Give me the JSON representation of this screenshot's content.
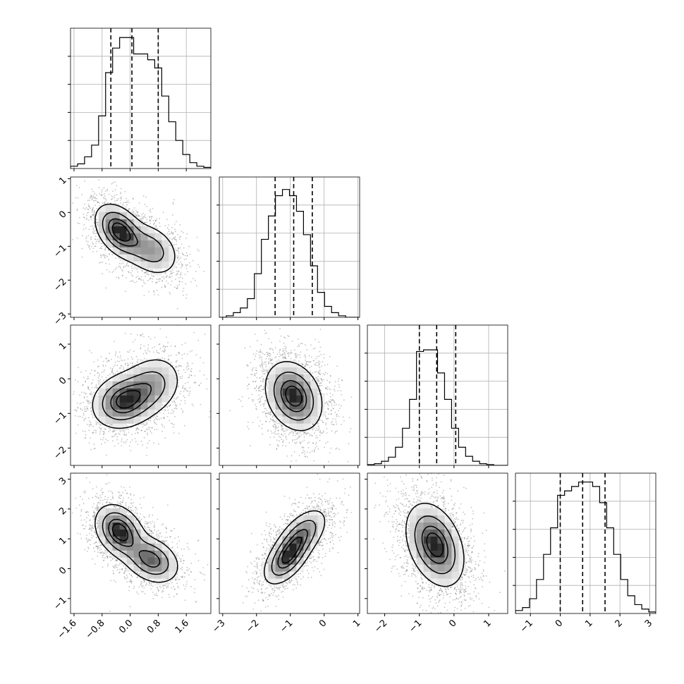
{
  "figure": {
    "type": "corner-plot"
  },
  "chart_data": {
    "type": "corner",
    "grid": true,
    "params": [
      {
        "range": [
          -1.7,
          2.3
        ],
        "ticks": [
          -1.6,
          -0.8,
          0.0,
          0.8,
          1.6
        ],
        "tick_labels": [
          "−1.6",
          "−0.8",
          "0.0",
          "0.8",
          "1.6"
        ],
        "quantiles": [
          -0.55,
          0.05,
          0.8
        ],
        "hist": [
          2,
          4,
          10,
          20,
          45,
          82,
          103,
          112,
          112,
          98,
          98,
          93,
          86,
          62,
          40,
          24,
          12,
          5,
          2,
          1
        ],
        "hist_max": 120
      },
      {
        "range": [
          -3.1,
          1.05
        ],
        "ticks": [
          -3,
          -2,
          -1,
          0,
          1
        ],
        "tick_labels": [
          "−3",
          "−2",
          "−1",
          "0",
          "1"
        ],
        "quantiles": [
          -1.45,
          -0.9,
          -0.35
        ],
        "hist": [
          0,
          1,
          3,
          6,
          12,
          28,
          50,
          65,
          78,
          82,
          78,
          68,
          53,
          33,
          16,
          7,
          3,
          1,
          0,
          0
        ],
        "hist_max": 90
      },
      {
        "range": [
          -2.5,
          1.55
        ],
        "ticks": [
          -2,
          -1,
          0,
          1
        ],
        "tick_labels": [
          "−2",
          "−1",
          "0",
          "1"
        ],
        "quantiles": [
          -1.0,
          -0.5,
          0.05
        ],
        "hist": [
          1,
          2,
          5,
          10,
          22,
          45,
          80,
          138,
          140,
          140,
          112,
          80,
          45,
          22,
          11,
          5,
          2,
          1,
          0,
          0
        ],
        "hist_max": 170
      },
      {
        "range": [
          -1.5,
          3.2
        ],
        "ticks": [
          -1,
          0,
          1,
          2,
          3
        ],
        "tick_labels": [
          "−1",
          "0",
          "1",
          "2",
          "3"
        ],
        "quantiles": [
          0.0,
          0.75,
          1.5
        ],
        "hist": [
          2,
          4,
          10,
          23,
          40,
          58,
          80,
          83,
          86,
          89,
          89,
          86,
          75,
          58,
          40,
          23,
          12,
          6,
          3,
          1
        ],
        "hist_max": 95
      }
    ],
    "pairs": [
      {
        "row": 1,
        "col": 0,
        "blobs": [
          {
            "mx": -0.3,
            "my": -0.55,
            "sx": 0.35,
            "sy": 0.4,
            "r": -0.4,
            "w": 0.6
          },
          {
            "mx": 0.6,
            "my": -1.1,
            "sx": 0.4,
            "sy": 0.4,
            "r": -0.3,
            "w": 0.4
          }
        ]
      },
      {
        "row": 2,
        "col": 0,
        "blobs": [
          {
            "mx": -0.2,
            "my": -0.65,
            "sx": 0.45,
            "sy": 0.4,
            "r": 0.15,
            "w": 0.6
          },
          {
            "mx": 0.6,
            "my": -0.2,
            "sx": 0.45,
            "sy": 0.45,
            "r": 0.2,
            "w": 0.4
          }
        ]
      },
      {
        "row": 2,
        "col": 1,
        "blobs": [
          {
            "mx": -0.9,
            "my": -0.5,
            "sx": 0.42,
            "sy": 0.5,
            "r": -0.25,
            "w": 1.0
          }
        ]
      },
      {
        "row": 3,
        "col": 0,
        "blobs": [
          {
            "mx": -0.3,
            "my": 1.25,
            "sx": 0.35,
            "sy": 0.45,
            "r": -0.3,
            "w": 0.55
          },
          {
            "mx": 0.6,
            "my": 0.3,
            "sx": 0.4,
            "sy": 0.4,
            "r": -0.3,
            "w": 0.45
          }
        ]
      },
      {
        "row": 3,
        "col": 1,
        "blobs": [
          {
            "mx": -1.1,
            "my": 0.35,
            "sx": 0.35,
            "sy": 0.45,
            "r": 0.55,
            "w": 0.55
          },
          {
            "mx": -0.65,
            "my": 1.15,
            "sx": 0.38,
            "sy": 0.45,
            "r": 0.55,
            "w": 0.45
          }
        ]
      },
      {
        "row": 3,
        "col": 2,
        "blobs": [
          {
            "mx": -0.55,
            "my": 0.8,
            "sx": 0.42,
            "sy": 0.7,
            "r": -0.35,
            "w": 1.0
          }
        ]
      }
    ]
  }
}
